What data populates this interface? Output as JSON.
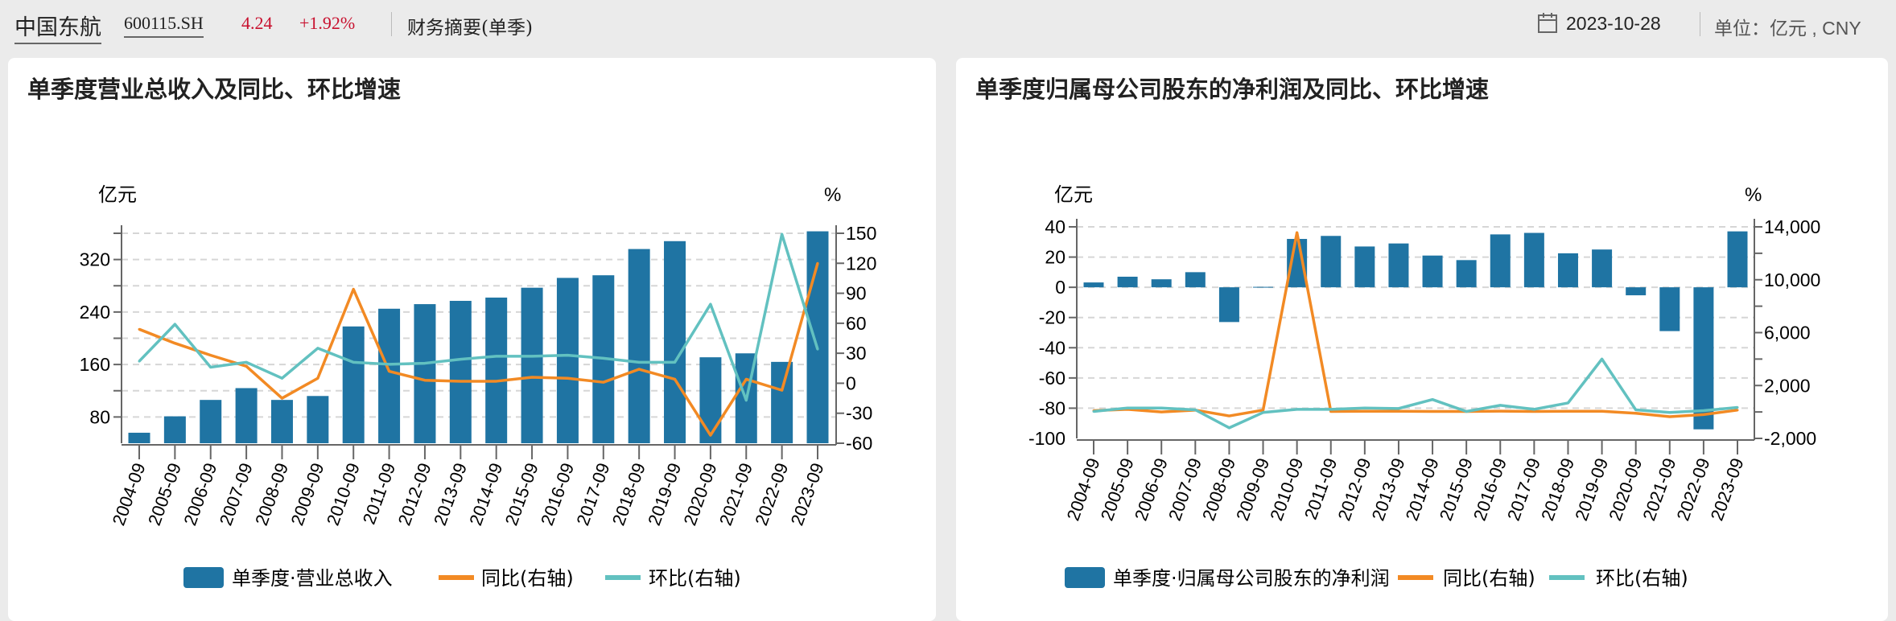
{
  "header": {
    "stock_name": "中国东航",
    "stock_code": "600115.SH",
    "price": "4.24",
    "change": "+1.92%",
    "section": "财务摘要(单季)",
    "date_icon": "calendar-icon",
    "date": "2023-10-28",
    "unit": "单位：亿元 , CNY"
  },
  "colors": {
    "bar": "#1f74a3",
    "yoy": "#f28a24",
    "qoq": "#62c1c0",
    "price_up": "#c8102e"
  },
  "panels": [
    {
      "title": "单季度营业总收入及同比、环比增速"
    },
    {
      "title": "单季度归属母公司股东的净利润及同比、环比增速"
    }
  ],
  "chart_data": [
    {
      "type": "bar+line",
      "title": "单季度营业总收入及同比、环比增速",
      "categories": [
        "2004-09",
        "2005-09",
        "2006-09",
        "2007-09",
        "2008-09",
        "2009-09",
        "2010-09",
        "2011-09",
        "2012-09",
        "2013-09",
        "2014-09",
        "2015-09",
        "2016-09",
        "2017-09",
        "2018-09",
        "2019-09",
        "2020-09",
        "2021-09",
        "2022-09",
        "2023-09"
      ],
      "left_axis": {
        "label": "亿元",
        "range": [
          40,
          360
        ],
        "ticks": [
          80,
          160,
          240,
          320
        ],
        "tick_labels": [
          "80",
          "160",
          "240",
          "320"
        ]
      },
      "right_axis": {
        "label": "%",
        "range": [
          -60,
          150
        ],
        "ticks": [
          -60,
          -30,
          0,
          30,
          60,
          90,
          120,
          150
        ],
        "tick_labels": [
          "-60",
          "-30",
          "0",
          "30",
          "60",
          "90",
          "120",
          "150"
        ]
      },
      "grid": true,
      "legend_position": "bottom",
      "series": [
        {
          "name": "单季度·营业总收入",
          "type": "bar",
          "axis": "left",
          "values": [
            56,
            81,
            106,
            124,
            106,
            112,
            218,
            245,
            252,
            257,
            262,
            277,
            292,
            296,
            336,
            348,
            171,
            177,
            164,
            363
          ]
        },
        {
          "name": "同比(右轴)",
          "type": "line",
          "axis": "right",
          "values": [
            54,
            40,
            28,
            17,
            -15,
            5,
            94,
            12,
            3,
            2,
            2,
            6,
            5,
            1,
            14,
            4,
            -52,
            4,
            -7,
            120
          ]
        },
        {
          "name": "环比(右轴)",
          "type": "line",
          "axis": "right",
          "values": [
            22,
            59,
            16,
            21,
            5,
            35,
            21,
            19,
            20,
            24,
            27,
            27,
            28,
            25,
            21,
            21,
            79,
            -17,
            149,
            34
          ]
        }
      ]
    },
    {
      "type": "bar+line",
      "title": "单季度归属母公司股东的净利润及同比、环比增速",
      "categories": [
        "2004-09",
        "2005-09",
        "2006-09",
        "2007-09",
        "2008-09",
        "2009-09",
        "2010-09",
        "2011-09",
        "2012-09",
        "2013-09",
        "2014-09",
        "2015-09",
        "2016-09",
        "2017-09",
        "2018-09",
        "2019-09",
        "2020-09",
        "2021-09",
        "2022-09",
        "2023-09"
      ],
      "left_axis": {
        "label": "亿元",
        "range": [
          -100,
          40
        ],
        "ticks": [
          -100,
          -80,
          -60,
          -40,
          -20,
          0,
          20,
          40
        ],
        "tick_labels": [
          "-100",
          "-80",
          "-60",
          "-40",
          "-20",
          "0",
          "20",
          "40"
        ]
      },
      "right_axis": {
        "label": "%",
        "range": [
          -2000,
          14000
        ],
        "ticks": [
          -2000,
          0,
          2000,
          4000,
          6000,
          8000,
          10000,
          12000,
          14000
        ],
        "tick_labels": [
          "-2,000",
          "",
          "2,000",
          "",
          "6,000",
          "",
          "10,000",
          "",
          "14,000"
        ]
      },
      "grid": true,
      "legend_position": "bottom",
      "series": [
        {
          "name": "单季度·归属母公司股东的净利润",
          "type": "bar",
          "axis": "left",
          "values": [
            3.2,
            7,
            5.3,
            10,
            -23,
            0.3,
            32,
            34,
            27,
            29,
            21,
            18,
            35,
            36,
            22.5,
            25,
            -5.3,
            -29,
            -94,
            37
          ]
        },
        {
          "name": "同比(右轴)",
          "type": "line",
          "axis": "right",
          "values": [
            100,
            200,
            0,
            140,
            -300,
            140,
            13560,
            40,
            50,
            50,
            40,
            40,
            60,
            40,
            50,
            50,
            -100,
            -360,
            -200,
            140
          ]
        },
        {
          "name": "环比(右轴)",
          "type": "line",
          "axis": "right",
          "values": [
            40,
            300,
            300,
            160,
            -1200,
            -40,
            200,
            200,
            300,
            260,
            940,
            40,
            500,
            200,
            680,
            4000,
            160,
            -40,
            100,
            340
          ]
        }
      ]
    }
  ]
}
